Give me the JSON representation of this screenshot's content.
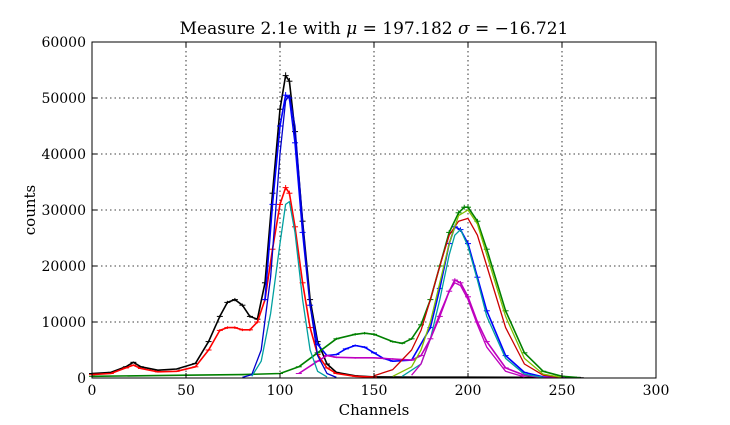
{
  "chart_data": {
    "type": "line",
    "title": "Measure 2.1e with μ = 197.182 σ = −16.721",
    "title_parts": {
      "prefix": "Measure 2.1e with ",
      "mu_symbol": "μ",
      "mu_eq": " = 197.182 ",
      "sigma_symbol": "σ",
      "sigma_eq": " = −16.721"
    },
    "xlabel": "Channels",
    "ylabel": "counts",
    "xlim": [
      0,
      300
    ],
    "ylim": [
      0,
      60000
    ],
    "x_ticks": [
      0,
      50,
      100,
      150,
      200,
      250,
      300
    ],
    "y_ticks": [
      0,
      10000,
      20000,
      30000,
      40000,
      50000,
      60000
    ],
    "grid": true,
    "legend": "none",
    "series": [
      {
        "color": "#000000",
        "style": "errorbar",
        "x": [
          0,
          10,
          18,
          22,
          26,
          35,
          45,
          55,
          62,
          68,
          72,
          76,
          80,
          84,
          88,
          92,
          96,
          100,
          103,
          105,
          108,
          112,
          116,
          120,
          125,
          130,
          140,
          150,
          175,
          200,
          250,
          260
        ],
        "values": [
          800,
          1000,
          2000,
          2800,
          2000,
          1400,
          1600,
          2600,
          6500,
          11000,
          13500,
          14000,
          13000,
          11000,
          10500,
          17000,
          33000,
          48000,
          54000,
          53000,
          44000,
          28000,
          14000,
          6500,
          2500,
          1000,
          400,
          200,
          150,
          150,
          100,
          50
        ]
      },
      {
        "color": "#ff0000",
        "style": "errorbar",
        "x": [
          0,
          10,
          18,
          22,
          26,
          35,
          45,
          55,
          62,
          68,
          72,
          76,
          80,
          84,
          88,
          92,
          96,
          100,
          103,
          105,
          108,
          112,
          116,
          120,
          125,
          130,
          140,
          150
        ],
        "values": [
          600,
          800,
          1800,
          2300,
          1700,
          1100,
          1200,
          2000,
          5000,
          8500,
          9000,
          9000,
          8600,
          8600,
          10000,
          14000,
          23000,
          31000,
          34000,
          33000,
          27000,
          17000,
          9000,
          4200,
          1800,
          800,
          300,
          150
        ]
      },
      {
        "color": "#0000ff",
        "style": "errorbar",
        "x": [
          92,
          96,
          100,
          103,
          105,
          108,
          112,
          116,
          120,
          125,
          130,
          135,
          140,
          145,
          150,
          155,
          160,
          170,
          180,
          185,
          190,
          193,
          196,
          200,
          205,
          210,
          220,
          230,
          240,
          250
        ],
        "values": [
          14000,
          31000,
          45000,
          50500,
          50000,
          42000,
          26000,
          13000,
          6000,
          4000,
          4200,
          5200,
          5800,
          5500,
          4500,
          3500,
          3000,
          3200,
          9000,
          16000,
          24000,
          27000,
          26500,
          24000,
          18000,
          12000,
          4000,
          1000,
          200,
          50
        ]
      },
      {
        "color": "#008000",
        "style": "errorbar",
        "x": [
          0,
          50,
          80,
          100,
          110,
          120,
          130,
          140,
          145,
          150,
          160,
          165,
          170,
          175,
          180,
          185,
          190,
          195,
          198,
          200,
          205,
          210,
          220,
          230,
          240,
          250,
          258
        ],
        "values": [
          300,
          500,
          600,
          800,
          2000,
          4500,
          7000,
          7800,
          8000,
          7800,
          6500,
          6200,
          7000,
          9500,
          14000,
          20000,
          26000,
          29500,
          30500,
          30500,
          28000,
          23000,
          12000,
          4500,
          1200,
          300,
          100
        ]
      },
      {
        "color": "#bf00bf",
        "style": "errorbar",
        "x": [
          110,
          120,
          125,
          130,
          140,
          150,
          160,
          170,
          175,
          180,
          185,
          190,
          193,
          196,
          200,
          205,
          210,
          220,
          230,
          240,
          250
        ],
        "values": [
          800,
          3000,
          4000,
          3700,
          3600,
          3600,
          3400,
          3200,
          4000,
          7000,
          11000,
          15500,
          17500,
          17000,
          14500,
          10000,
          6500,
          1800,
          500,
          100,
          50
        ]
      },
      {
        "color": "#0000cc",
        "style": "fit",
        "x": [
          80,
          85,
          90,
          95,
          100,
          103,
          105,
          108,
          112,
          116,
          120,
          125,
          130
        ],
        "values": [
          100,
          600,
          5000,
          18000,
          40000,
          49500,
          50500,
          45000,
          28000,
          13000,
          4000,
          800,
          100
        ]
      },
      {
        "color": "#00a0a0",
        "style": "fit",
        "x": [
          85,
          90,
          95,
          100,
          103,
          105,
          108,
          112,
          116,
          120,
          125
        ],
        "values": [
          300,
          3000,
          11500,
          24000,
          31000,
          31500,
          26000,
          14000,
          5000,
          1200,
          200
        ]
      },
      {
        "color": "#cc0000",
        "style": "fit",
        "x": [
          150,
          160,
          170,
          175,
          180,
          185,
          190,
          195,
          200,
          205,
          210,
          220,
          230,
          240,
          250
        ],
        "values": [
          400,
          1500,
          5000,
          8500,
          14000,
          20000,
          25500,
          28000,
          28500,
          25500,
          20000,
          9000,
          2500,
          500,
          100
        ]
      },
      {
        "color": "#00a0a0",
        "style": "fit",
        "x": [
          165,
          175,
          180,
          185,
          190,
          193,
          196,
          200,
          205,
          210,
          220,
          230,
          240
        ],
        "values": [
          300,
          2500,
          7000,
          14000,
          22000,
          25500,
          26500,
          23500,
          17500,
          11000,
          3500,
          700,
          100
        ]
      },
      {
        "color": "#80c000",
        "style": "fit",
        "x": [
          160,
          170,
          175,
          180,
          185,
          190,
          195,
          200,
          205,
          210,
          220,
          230,
          240,
          250
        ],
        "values": [
          300,
          2000,
          5000,
          10000,
          17000,
          24000,
          29000,
          30000,
          27500,
          22000,
          11000,
          3500,
          700,
          100
        ]
      },
      {
        "color": "#bf00bf",
        "style": "fit",
        "x": [
          170,
          175,
          180,
          185,
          190,
          193,
          196,
          200,
          205,
          210,
          220,
          230
        ],
        "values": [
          500,
          2500,
          7000,
          11500,
          15500,
          17000,
          16500,
          14000,
          9500,
          5500,
          1200,
          200
        ]
      }
    ]
  }
}
